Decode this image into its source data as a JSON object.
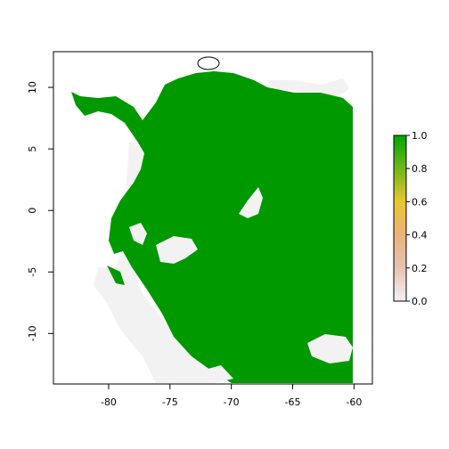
{
  "chart_data": {
    "type": "heatmap",
    "x_ticks": [
      -80,
      -75,
      -70,
      -65,
      -60
    ],
    "y_ticks": [
      -10,
      -5,
      0,
      5,
      10
    ],
    "xlim": [
      -84.5,
      -58.5
    ],
    "ylim": [
      -14.1,
      12.9
    ],
    "legend": {
      "placement": "right",
      "ticks": [
        "0.0",
        "0.2",
        "0.4",
        "0.6",
        "0.8",
        "1.0"
      ],
      "colors": [
        "#f2f2f2",
        "#e6c3b2",
        "#ecb17a",
        "#e8c72f",
        "#6fb51e",
        "#00a600"
      ]
    },
    "background_color": "#f2f2f2",
    "presence_color": "#009900"
  }
}
